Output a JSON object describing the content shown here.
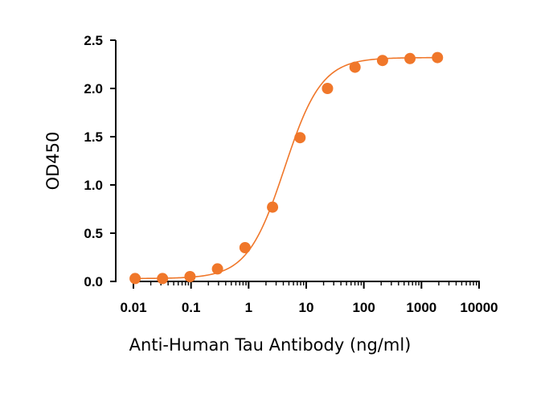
{
  "chart_data": {
    "type": "scatter",
    "title": "",
    "xlabel": "Anti-Human Tau Antibody (ng/ml)",
    "ylabel": "OD450",
    "x_scale": "log",
    "xlim": [
      0.01,
      10000
    ],
    "ylim": [
      0,
      2.5
    ],
    "x_ticks": [
      0.01,
      0.1,
      1,
      10,
      100,
      1000,
      10000
    ],
    "x_tick_labels": [
      "0.01",
      "0.1",
      "1",
      "10",
      "100",
      "1000",
      "10000"
    ],
    "y_ticks": [
      0,
      0.5,
      1.0,
      1.5,
      2.0,
      2.5
    ],
    "y_tick_labels": [
      "0.0",
      "0.5",
      "1.0",
      "1.5",
      "2.0",
      "2.5"
    ],
    "grid": false,
    "legend": "none",
    "series": [
      {
        "color": "#F0772A",
        "fit": "4PL sigmoidal curve",
        "x": [
          0.0107,
          0.032,
          0.096,
          0.288,
          0.866,
          2.6,
          7.8,
          23.4,
          70.3,
          211,
          632,
          1897
        ],
        "y": [
          0.03,
          0.03,
          0.05,
          0.13,
          0.35,
          0.77,
          1.49,
          2.0,
          2.22,
          2.29,
          2.31,
          2.32
        ]
      }
    ]
  }
}
